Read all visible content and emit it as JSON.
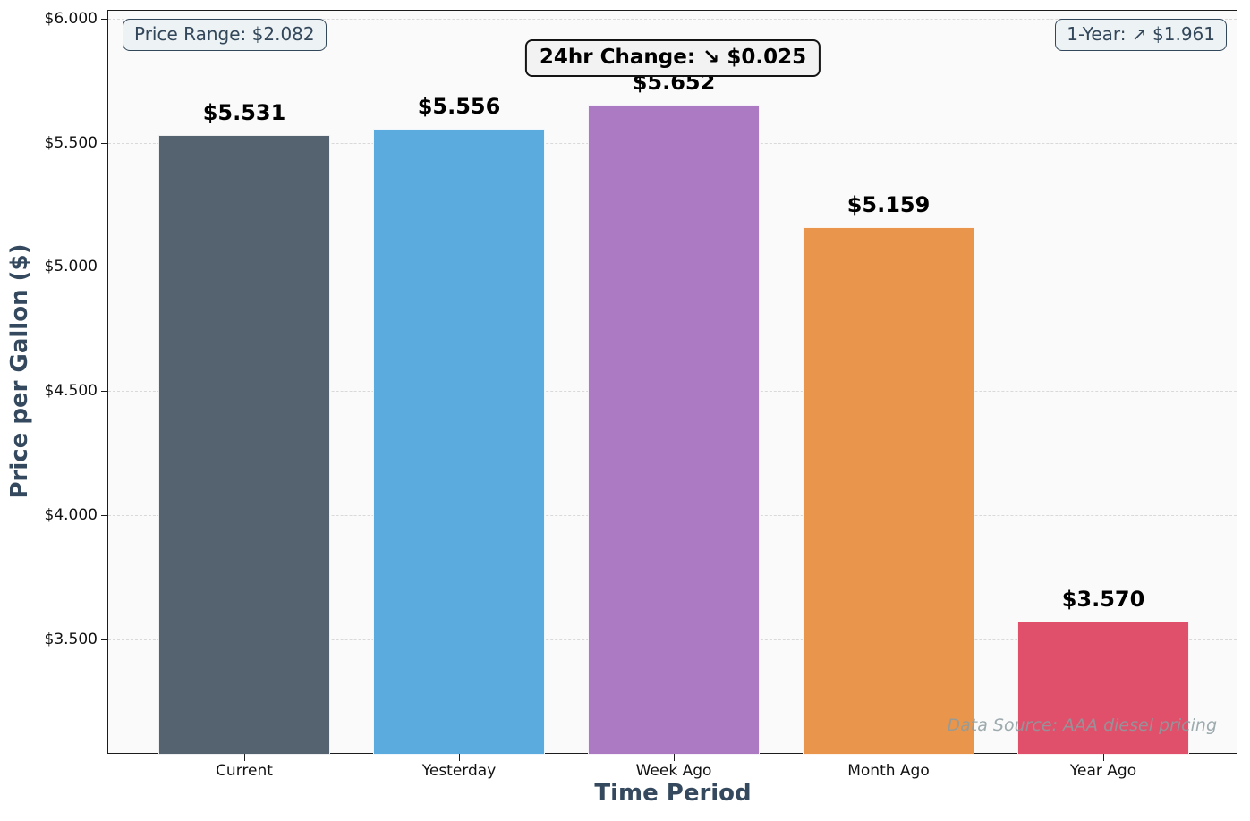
{
  "chart_data": {
    "type": "bar",
    "categories": [
      "Current",
      "Yesterday",
      "Week Ago",
      "Month Ago",
      "Year Ago"
    ],
    "values": [
      5.531,
      5.556,
      5.652,
      5.159,
      3.57
    ],
    "value_labels": [
      "$5.531",
      "$5.556",
      "$5.652",
      "$5.159",
      "$3.570"
    ],
    "bar_colors": [
      "#55626f",
      "#5babdf",
      "#ac79c3",
      "#e9964c",
      "#e0506a"
    ],
    "title": "",
    "xlabel": "Time Period",
    "ylabel": "Price per Gallon ($)",
    "ylim": [
      3.035,
      6.032
    ],
    "ytick_values": [
      6.0,
      5.5,
      5.0,
      4.5,
      4.0,
      3.5
    ],
    "ytick_labels": [
      "$6.000",
      "$5.500",
      "$5.000",
      "$4.500",
      "$4.000",
      "$3.500"
    ],
    "grid": "horizontal dashed",
    "legend": "none",
    "annotations": {
      "price_range": "Price Range: $2.082",
      "change_24hr": "24hr Change: ↘ $0.025",
      "one_year": "1-Year: ↗ $1.961",
      "data_source": "Data Source: AAA diesel pricing"
    },
    "colors": {
      "axis_label": "#34495e",
      "plot_background": "#fafafa",
      "figure_background": "#ffffff",
      "annotation_text": "#33475a",
      "gridline": "#d9d9d9"
    }
  }
}
